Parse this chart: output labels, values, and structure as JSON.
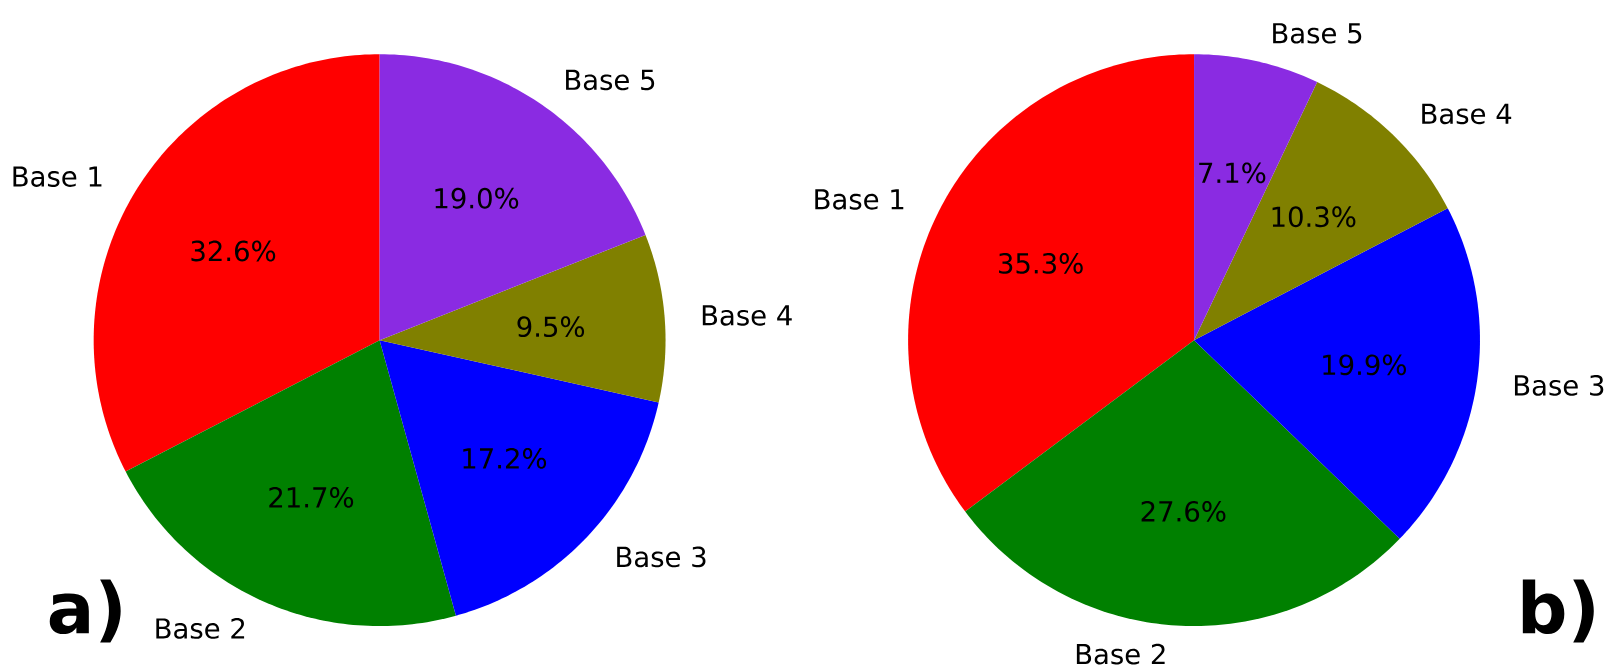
{
  "chart_data": [
    {
      "type": "pie",
      "categories": [
        "Base 1",
        "Base 2",
        "Base 3",
        "Base 4",
        "Base 5"
      ],
      "values": [
        32.6,
        21.7,
        17.2,
        9.5,
        19.0
      ],
      "colors": [
        "#ff0000",
        "#008000",
        "#0000ff",
        "#808000",
        "#8a2be2"
      ],
      "value_labels": [
        "32.6%",
        "21.7%",
        "17.2%",
        "9.5%",
        "19.0%"
      ],
      "annotations": [
        "a)"
      ]
    },
    {
      "type": "pie",
      "categories": [
        "Base 1",
        "Base 2",
        "Base 3",
        "Base 4",
        "Base 5"
      ],
      "values": [
        35.3,
        27.6,
        19.9,
        10.3,
        7.1
      ],
      "colors": [
        "#ff0000",
        "#008000",
        "#0000ff",
        "#808000",
        "#8a2be2"
      ],
      "value_labels": [
        "35.3%",
        "27.6%",
        "19.9%",
        "10.3%",
        "7.1%"
      ],
      "annotations": [
        "b)"
      ]
    }
  ]
}
